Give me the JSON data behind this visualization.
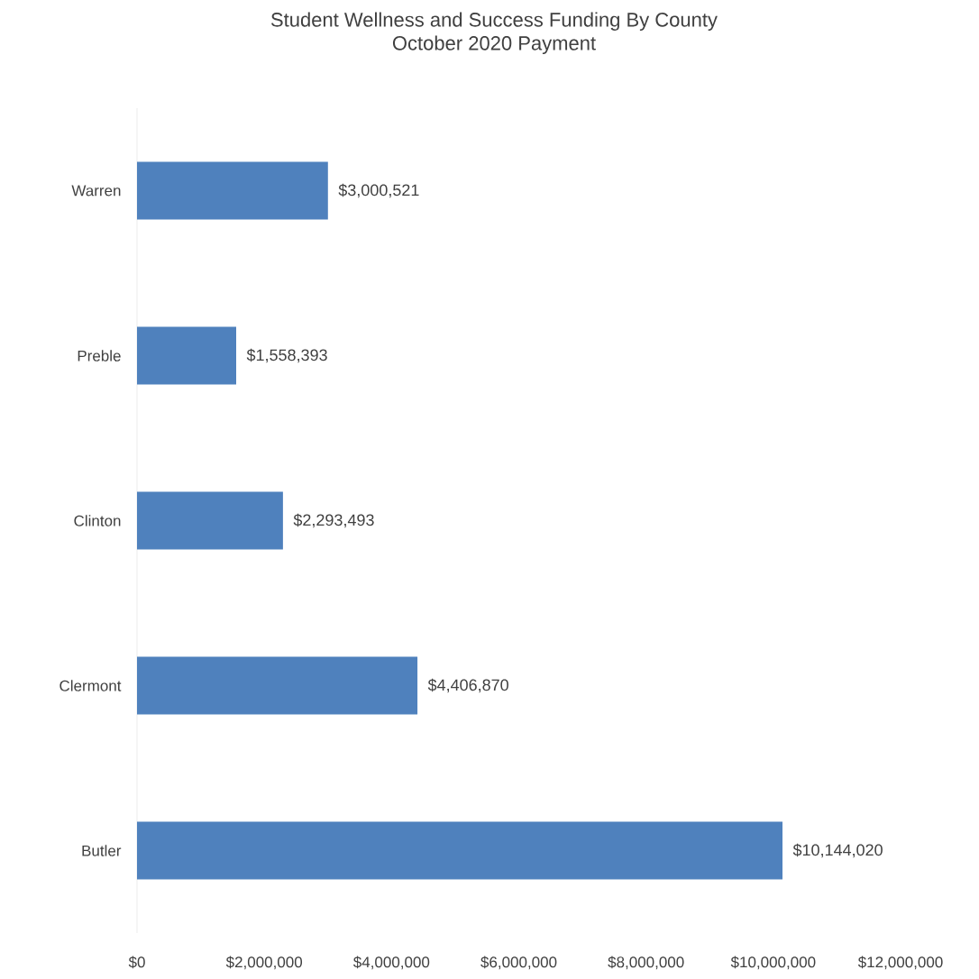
{
  "chart_data": {
    "type": "bar",
    "orientation": "horizontal",
    "title": "Student Wellness and Success Funding By County",
    "subtitle": "October 2020 Payment",
    "categories": [
      "Warren",
      "Preble",
      "Clinton",
      "Clermont",
      "Butler"
    ],
    "values": [
      3000521,
      1558393,
      2293493,
      4406870,
      10144020
    ],
    "value_labels": [
      "$3,000,521",
      "$1,558,393",
      "$2,293,493",
      "$4,406,870",
      "$10,144,020"
    ],
    "color": "#4f81bd",
    "xlim": [
      0,
      12000000
    ],
    "xticks": [
      {
        "value": 0,
        "label": "$0"
      },
      {
        "value": 2000000,
        "label": "$2,000,000"
      },
      {
        "value": 4000000,
        "label": "$4,000,000"
      },
      {
        "value": 6000000,
        "label": "$6,000,000"
      },
      {
        "value": 8000000,
        "label": "$8,000,000"
      },
      {
        "value": 10000000,
        "label": "$10,000,000"
      },
      {
        "value": 12000000,
        "label": "$12,000,000"
      }
    ]
  }
}
